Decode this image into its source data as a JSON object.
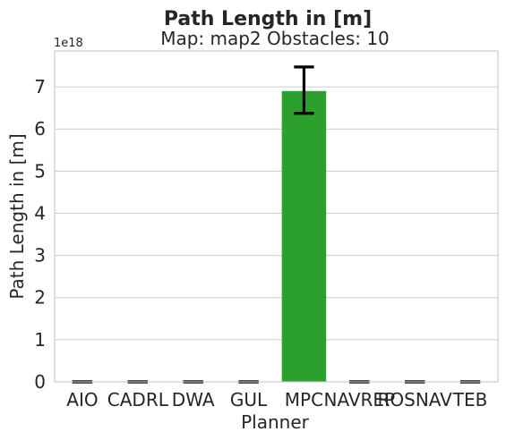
{
  "chart_data": {
    "type": "bar",
    "suptitle": "Path Length in [m]",
    "title": "Map: map2 Obstacles: 10",
    "xlabel": "Planner",
    "ylabel": "Path Length in [m]",
    "y_offset_text": "1e18",
    "y_scale": 1e+18,
    "ylim": [
      0,
      7.85
    ],
    "yticks": [
      0,
      1,
      2,
      3,
      4,
      5,
      6,
      7
    ],
    "ytick_labels": [
      "0",
      "1",
      "2",
      "3",
      "4",
      "5",
      "6",
      "7"
    ],
    "grid": true,
    "categories": [
      "AIO",
      "CADRL",
      "DWA",
      "GUL",
      "MPC",
      "NAVREP",
      "ROSNAV",
      "TEB"
    ],
    "values": [
      0,
      0,
      0,
      0,
      6.9,
      0,
      0,
      0
    ],
    "error_low": [
      0,
      0,
      0,
      0,
      6.37,
      0,
      0,
      0
    ],
    "error_high": [
      0,
      0,
      0,
      0,
      7.47,
      0,
      0,
      0
    ],
    "colors": [
      "#1f77b4",
      "#ff7f0e",
      "#2ca02c",
      "#d62728",
      "#2ca02c",
      "#8c564b",
      "#e377c2",
      "#7f7f7f"
    ],
    "error_color": "#000000"
  }
}
